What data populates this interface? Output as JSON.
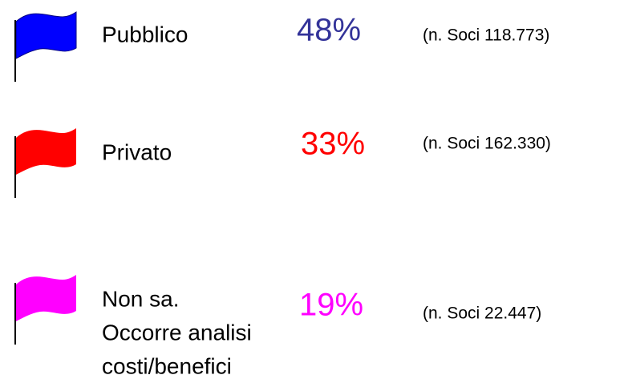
{
  "items": [
    {
      "label": [
        "Pubblico"
      ],
      "percent": "48%",
      "note": "(n. Soci 118.773)",
      "color": "#0000ff",
      "percent_color": "#333399"
    },
    {
      "label": [
        "Privato"
      ],
      "percent": "33%",
      "note": "(n. Soci 162.330)",
      "color": "#ff0000",
      "percent_color": "#ff0000"
    },
    {
      "label": [
        "Non sa.",
        "Occorre analisi",
        "costi/benefici"
      ],
      "percent": "19%",
      "note": "(n. Soci 22.447)",
      "color": "#ff00ff",
      "percent_color": "#ff00ff"
    }
  ]
}
